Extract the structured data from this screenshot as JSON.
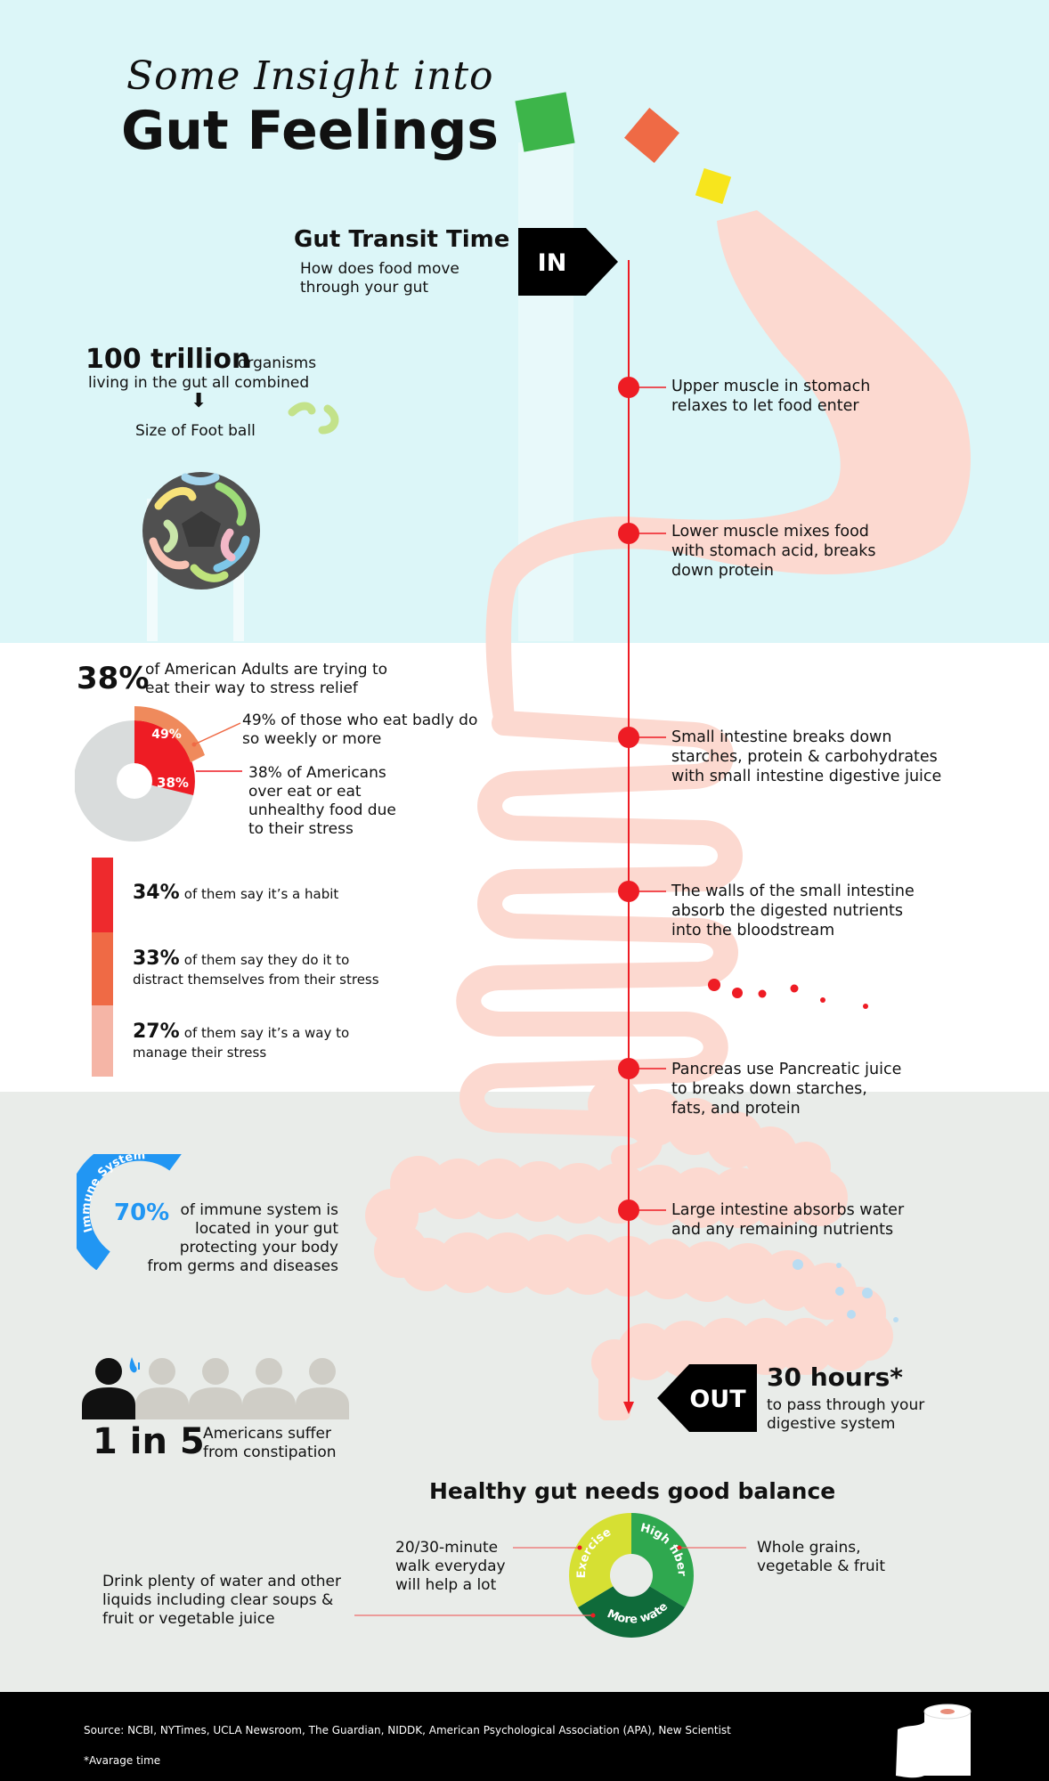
{
  "header": {
    "script_title": "Some Insight into",
    "main_title": "Gut Feelings"
  },
  "transit": {
    "title": "Gut Transit Time",
    "subtitle": "How does food move through your gut",
    "in_label": "IN",
    "out_label": "OUT",
    "hours": "30 hours*",
    "hours_caption": "to pass through your digestive system"
  },
  "organisms": {
    "amount": "100 trillion",
    "unit": "organisms",
    "caption": "living in the gut all combined",
    "comparison": "Size of Foot ball"
  },
  "steps": [
    "Upper muscle in stomach relaxes to let food enter",
    "Lower muscle mixes food with stomach acid, breaks down protein",
    "Small intestine breaks down starches, protein & carbohydrates with small intestine digestive juice",
    "The walls of the small intestine absorb the digested nutrients into the bloodstream",
    "Pancreas use Pancreatic juice to breaks down starches, fats, and protein",
    "Large intestine absorbs water and any remaining nutrients"
  ],
  "stress": {
    "percent": "38%",
    "caption": "of American Adults are trying to eat their way to stress relief",
    "donut_outer_label": "49%",
    "donut_inner_label": "38%",
    "note_49": "49% of those who eat badly do so weekly or more",
    "note_38": "38% of Americans over eat or eat unhealthy food due to their stress",
    "reasons": [
      {
        "pct": "34%",
        "text": "of them say it’s a habit",
        "text2": "",
        "color": "#ee2a2d"
      },
      {
        "pct": "33%",
        "text": "of them say they do it to",
        "text2": "distract themselves from their stress",
        "color": "#ef6a45"
      },
      {
        "pct": "27%",
        "text": "of them say it’s a way to",
        "text2": "manage their stress",
        "color": "#f5b5a6"
      }
    ]
  },
  "immune": {
    "arc_label": "Immune System",
    "percent": "70%",
    "caption": "of immune system is located in your gut protecting your body from germs and diseases"
  },
  "constipation": {
    "ratio": "1 in 5",
    "caption": "Americans suffer from constipation",
    "people_total": 5,
    "people_highlighted": 1
  },
  "balance": {
    "title": "Healthy gut needs good balance",
    "segments": [
      {
        "label": "Exercise",
        "color": "#d6e033"
      },
      {
        "label": "High fiber",
        "color": "#2fa84f"
      },
      {
        "label": "More water",
        "color": "#0f6b3a"
      }
    ],
    "exercise_note": "20/30-minute walk everyday will help a lot",
    "fiber_note": "Whole grains, vegetable & fruit",
    "water_note": "Drink plenty of water and other liquids including clear soups & fruit or vegetable juice"
  },
  "footer": {
    "source": "Source: NCBI, NYTimes, UCLA Newsroom, The Guardian, NIDDK, American Psychological Association (APA), New Scientist",
    "note": "*Avarage time"
  },
  "colors": {
    "accent_red": "#ee1c24",
    "gut_pink": "#fcd9d0",
    "top_bg": "#dcf6f8",
    "bottom_bg": "#e9ece9",
    "immune_blue": "#2196f3"
  }
}
